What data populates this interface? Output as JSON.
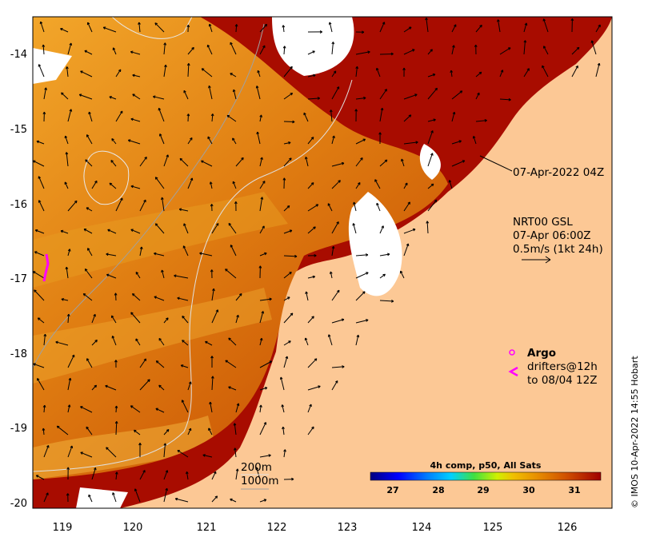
{
  "map": {
    "x_ticks": [
      "119",
      "120",
      "121",
      "122",
      "123",
      "124",
      "125",
      "126"
    ],
    "y_ticks": [
      "-14",
      "-15",
      "-16",
      "-17",
      "-18",
      "-19",
      "-20"
    ]
  },
  "annotations": {
    "sst_time": "07-Apr-2022 04Z",
    "current_product": "NRT00 GSL",
    "current_time": "07-Apr 06:00Z",
    "current_scale": "0.5m/s (1kt 24h)",
    "argo_label": "Argo",
    "drifters_line1": "drifters@12h",
    "drifters_line2": "to 08/04 12Z"
  },
  "contours": {
    "label_200": "200m",
    "label_1000": "1000m"
  },
  "colorbar": {
    "title": "4h comp, p50, All Sats",
    "ticks": [
      "27",
      "28",
      "29",
      "30",
      "31"
    ],
    "colors": [
      "#000080",
      "#0000ff",
      "#0080ff",
      "#00d0ff",
      "#20e0a0",
      "#40e040",
      "#a0e000",
      "#f0f000",
      "#f0c000",
      "#e89000",
      "#d86000",
      "#c03000",
      "#a00000"
    ]
  },
  "credit": "© IMOS 10-Apr-2022 14:55 Hobart",
  "colors": {
    "land": "#fcc895",
    "sst_warm": "#e07a10",
    "sst_hot": "#a80c00",
    "sst_mild": "#f0a020",
    "no_data": "#ffffff",
    "drifter": "#ff00ff"
  }
}
